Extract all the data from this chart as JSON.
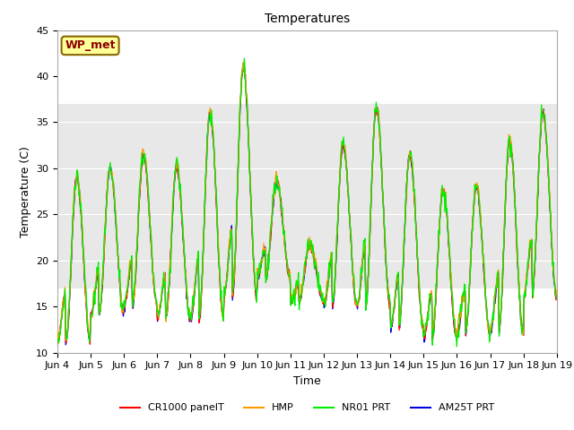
{
  "title": "Temperatures",
  "xlabel": "Time",
  "ylabel": "Temperature (C)",
  "ylim": [
    10,
    45
  ],
  "xlim": [
    0,
    360
  ],
  "fig_bg_color": "#ffffff",
  "plot_bg_color": "#ffffff",
  "station_label": "WP_met",
  "x_tick_labels": [
    "Jun 4",
    "Jun 5",
    "Jun 6",
    "Jun 7",
    "Jun 8",
    "Jun 9",
    "Jun 10",
    "Jun 11",
    "Jun 12",
    "Jun 13",
    "Jun 14",
    "Jun 15",
    "Jun 16",
    "Jun 17",
    "Jun 18",
    "Jun 19"
  ],
  "x_tick_positions": [
    0,
    24,
    48,
    72,
    96,
    120,
    144,
    168,
    192,
    216,
    240,
    264,
    288,
    312,
    336,
    360
  ],
  "series": {
    "CR1000_panelT": {
      "color": "#ff0000",
      "label": "CR1000 panelT"
    },
    "HMP": {
      "color": "#ff9900",
      "label": "HMP"
    },
    "NR01_PRT": {
      "color": "#00ee00",
      "label": "NR01 PRT"
    },
    "AM25T_PRT": {
      "color": "#0000dd",
      "label": "AM25T PRT"
    }
  },
  "shaded_region": [
    17,
    37
  ],
  "shaded_color": "#e8e8e8",
  "grid_color": "#dddddd",
  "daily_max": [
    29,
    30,
    31.5,
    30,
    36,
    41,
    28.5,
    21.5,
    32.5,
    36.5,
    31.5,
    27.5,
    28,
    33,
    36
  ],
  "daily_min": [
    11,
    14,
    15,
    13.5,
    13.5,
    16,
    18,
    15.5,
    15,
    15,
    12.5,
    11.5,
    12,
    12,
    16
  ],
  "title_fontsize": 10,
  "axis_label_fontsize": 9,
  "tick_fontsize": 8,
  "legend_fontsize": 8
}
